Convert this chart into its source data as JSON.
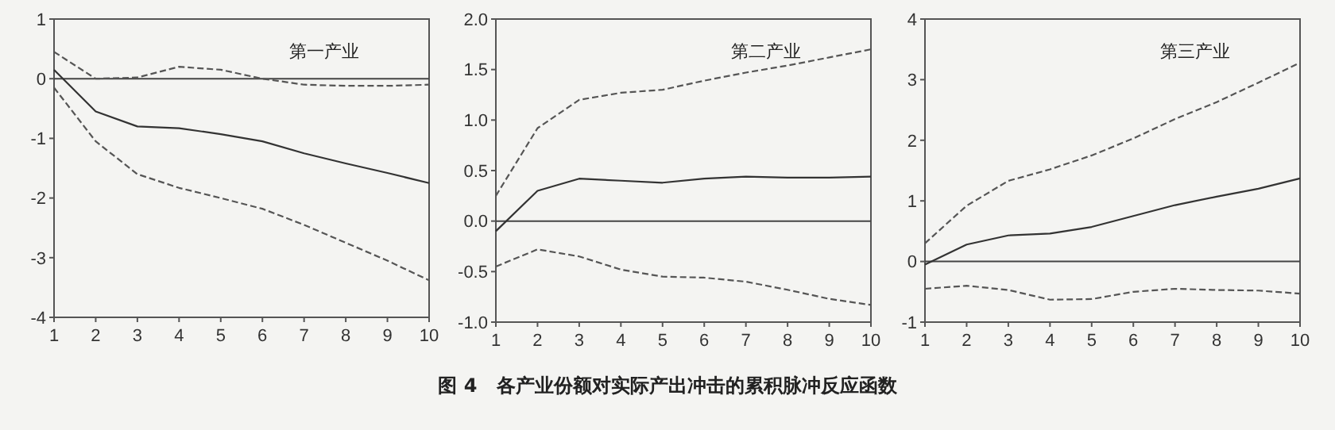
{
  "chart_data": [
    {
      "type": "line",
      "title": "第一产业",
      "annotations": [
        "图 4　各产业份额对实际产出冲击的累积脉冲反应函数"
      ],
      "x": [
        1,
        2,
        3,
        4,
        5,
        6,
        7,
        8,
        9,
        10
      ],
      "xlim": [
        1,
        10
      ],
      "xticks": [
        1,
        2,
        3,
        4,
        5,
        6,
        7,
        8,
        9,
        10
      ],
      "ylim": [
        -4,
        1
      ],
      "yticks": [
        -4,
        -3,
        -2,
        -1,
        0,
        1
      ],
      "grid": false,
      "marker": "none",
      "ref_lines": [
        {
          "axis": "y",
          "value": 0,
          "color": "#444444"
        }
      ],
      "series": [
        {
          "color": "#333333",
          "line_style": "solid",
          "values": [
            0.15,
            -0.55,
            -0.8,
            -0.83,
            -0.93,
            -1.05,
            -1.25,
            -1.42,
            -1.58,
            -1.75
          ]
        },
        {
          "color": "#555555",
          "line_style": "dashed",
          "values": [
            0.45,
            0.0,
            0.02,
            0.2,
            0.15,
            0.0,
            -0.1,
            -0.12,
            -0.12,
            -0.1
          ]
        },
        {
          "color": "#555555",
          "line_style": "dashed",
          "values": [
            -0.15,
            -1.05,
            -1.6,
            -1.83,
            -2.0,
            -2.18,
            -2.45,
            -2.75,
            -3.05,
            -3.38
          ]
        }
      ]
    },
    {
      "type": "line",
      "title": "第二产业",
      "x": [
        1,
        2,
        3,
        4,
        5,
        6,
        7,
        8,
        9,
        10
      ],
      "xlim": [
        1,
        10
      ],
      "xticks": [
        1,
        2,
        3,
        4,
        5,
        6,
        7,
        8,
        9,
        10
      ],
      "ylim": [
        -1,
        2
      ],
      "yticks": [
        {
          "value": -1,
          "label": "-1.0"
        },
        -0.5,
        {
          "value": 0,
          "label": "0.0"
        },
        0.5,
        {
          "value": 1,
          "label": "1.0"
        },
        1.5,
        {
          "value": 2,
          "label": "2.0"
        }
      ],
      "grid": false,
      "marker": "none",
      "ref_lines": [
        {
          "axis": "y",
          "value": 0,
          "color": "#444444"
        }
      ],
      "series": [
        {
          "color": "#333333",
          "line_style": "solid",
          "values": [
            -0.1,
            0.3,
            0.42,
            0.4,
            0.38,
            0.42,
            0.44,
            0.43,
            0.43,
            0.44
          ]
        },
        {
          "color": "#555555",
          "line_style": "dashed",
          "values": [
            0.25,
            0.92,
            1.2,
            1.27,
            1.3,
            1.39,
            1.47,
            1.54,
            1.62,
            1.7
          ]
        },
        {
          "color": "#555555",
          "line_style": "dashed",
          "values": [
            -0.45,
            -0.28,
            -0.35,
            -0.48,
            -0.55,
            -0.56,
            -0.6,
            -0.68,
            -0.77,
            -0.83
          ]
        }
      ]
    },
    {
      "type": "line",
      "title": "第三产业",
      "x": [
        1,
        2,
        3,
        4,
        5,
        6,
        7,
        8,
        9,
        10
      ],
      "xlim": [
        1,
        10
      ],
      "xticks": [
        1,
        2,
        3,
        4,
        5,
        6,
        7,
        8,
        9,
        10
      ],
      "ylim": [
        -1,
        4
      ],
      "yticks": [
        -1,
        0,
        1,
        2,
        3,
        4
      ],
      "grid": false,
      "marker": "none",
      "ref_lines": [
        {
          "axis": "y",
          "value": 0,
          "color": "#444444"
        }
      ],
      "series": [
        {
          "color": "#333333",
          "line_style": "solid",
          "values": [
            -0.05,
            0.28,
            0.43,
            0.46,
            0.57,
            0.75,
            0.93,
            1.07,
            1.2,
            1.37
          ]
        },
        {
          "color": "#555555",
          "line_style": "dashed",
          "values": [
            0.3,
            0.92,
            1.33,
            1.52,
            1.75,
            2.03,
            2.35,
            2.63,
            2.95,
            3.28
          ]
        },
        {
          "color": "#555555",
          "line_style": "dashed",
          "values": [
            -0.45,
            -0.4,
            -0.47,
            -0.63,
            -0.62,
            -0.5,
            -0.45,
            -0.47,
            -0.48,
            -0.53
          ]
        }
      ]
    }
  ]
}
